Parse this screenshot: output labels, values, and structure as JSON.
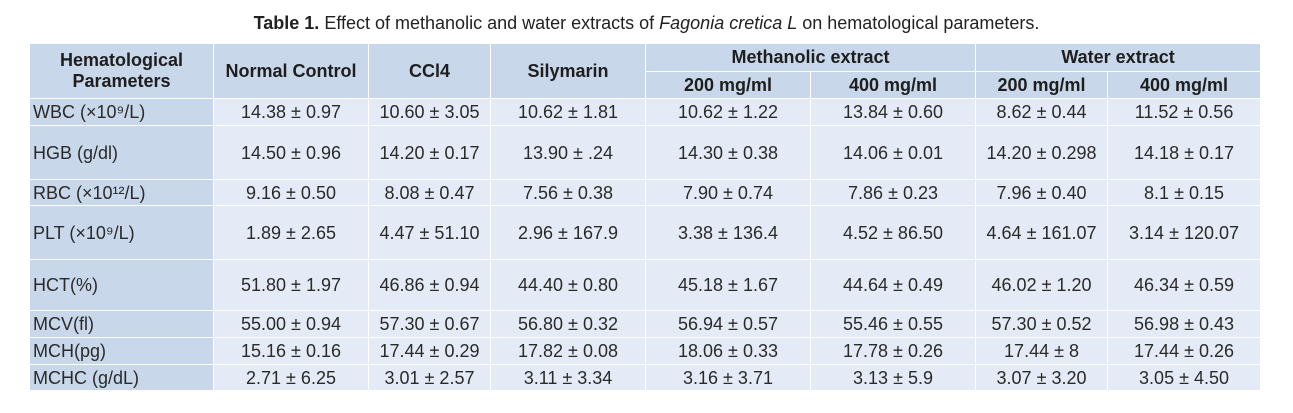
{
  "caption": {
    "label": "Table 1.",
    "text_before": " Effect of methanolic and water extracts of ",
    "species": "Fagonia cretica L",
    "text_after": " on hematological parameters."
  },
  "table": {
    "headers": {
      "param": "Hematological Parameters",
      "normal": "Normal Control",
      "ccl4": "CCl4",
      "silymarin": "Silymarin",
      "methanolic": "Methanolic extract",
      "water": "Water extract",
      "m200": "200 mg/ml",
      "m400": "400 mg/ml",
      "w200": "200 mg/ml",
      "w400": "400 mg/ml"
    },
    "rows": [
      {
        "param": "WBC (×10⁹/L)",
        "values": [
          "14.38 ± 0.97",
          "10.60 ± 3.05",
          "10.62 ± 1.81",
          "10.62 ± 1.22",
          "13.84 ± 0.60",
          "8.62 ± 0.44",
          "11.52 ± 0.56"
        ]
      },
      {
        "param": "HGB (g/dl)",
        "values": [
          "14.50 ± 0.96",
          "14.20 ± 0.17",
          "13.90 ± .24",
          "14.30 ± 0.38",
          "14.06 ± 0.01",
          "14.20 ± 0.298",
          "14.18 ± 0.17"
        ]
      },
      {
        "param": "RBC (×10¹²/L)",
        "values": [
          "9.16 ± 0.50",
          "8.08 ± 0.47",
          "7.56 ± 0.38",
          "7.90 ± 0.74",
          "7.86 ± 0.23",
          "7.96 ± 0.40",
          "8.1 ± 0.15"
        ]
      },
      {
        "param": "PLT (×10⁹/L)",
        "values": [
          "1.89 ± 2.65",
          "4.47 ± 51.10",
          "2.96 ± 167.9",
          "3.38 ± 136.4",
          "4.52 ± 86.50",
          "4.64 ± 161.07",
          "3.14 ± 120.07"
        ]
      },
      {
        "param": "HCT(%)",
        "values": [
          "51.80 ± 1.97",
          "46.86 ± 0.94",
          "44.40 ± 0.80",
          "45.18 ± 1.67",
          "44.64 ± 0.49",
          "46.02 ± 1.20",
          "46.34 ± 0.59"
        ]
      },
      {
        "param": "MCV(fl)",
        "values": [
          "55.00 ± 0.94",
          "57.30 ± 0.67",
          "56.80 ± 0.32",
          "56.94 ± 0.57",
          "55.46 ± 0.55",
          "57.30 ± 0.52",
          "56.98 ± 0.43"
        ]
      },
      {
        "param": "MCH(pg)",
        "values": [
          "15.16 ± 0.16",
          "17.44 ± 0.29",
          "17.82 ± 0.08",
          "18.06 ± 0.33",
          "17.78 ± 0.26",
          "17.44 ± 8",
          "17.44 ± 0.26"
        ]
      },
      {
        "param": "MCHC (g/dL)",
        "values": [
          "2.71 ± 6.25",
          "3.01 ± 2.57",
          "3.11 ± 3.34",
          "3.16 ± 3.71",
          "3.13 ± 5.9",
          "3.07 ± 3.20",
          "3.05 ± 4.50"
        ]
      }
    ]
  }
}
